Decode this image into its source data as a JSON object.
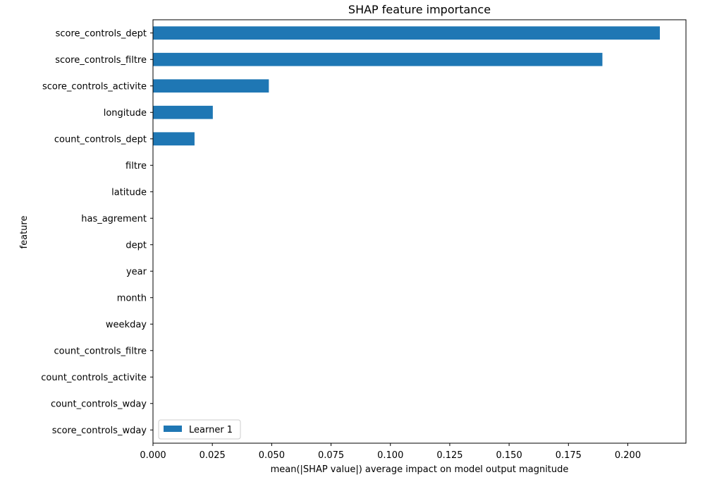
{
  "chart_data": {
    "type": "bar",
    "orientation": "horizontal",
    "title": "SHAP feature importance",
    "xlabel": "mean(|SHAP value|) average impact on model output magnitude",
    "ylabel": "feature",
    "xlim": [
      0,
      0.2245
    ],
    "xticks": [
      0.0,
      0.025,
      0.05,
      0.075,
      0.1,
      0.125,
      0.15,
      0.175,
      0.2
    ],
    "xtick_labels": [
      "0.000",
      "0.025",
      "0.050",
      "0.075",
      "0.100",
      "0.125",
      "0.150",
      "0.175",
      "0.200"
    ],
    "categories": [
      "score_controls_dept",
      "score_controls_filtre",
      "score_controls_activite",
      "longitude",
      "count_controls_dept",
      "filtre",
      "latitude",
      "has_agrement",
      "dept",
      "year",
      "month",
      "weekday",
      "count_controls_filtre",
      "count_controls_activite",
      "count_controls_wday",
      "score_controls_wday"
    ],
    "series": [
      {
        "name": "Learner 1",
        "color": "#1f77b4",
        "values": [
          0.2135,
          0.1893,
          0.0488,
          0.0252,
          0.0175,
          0,
          0,
          0,
          0,
          0,
          0,
          0,
          0,
          0,
          0,
          0
        ]
      }
    ],
    "grid": false,
    "legend_position": "lower-left"
  }
}
